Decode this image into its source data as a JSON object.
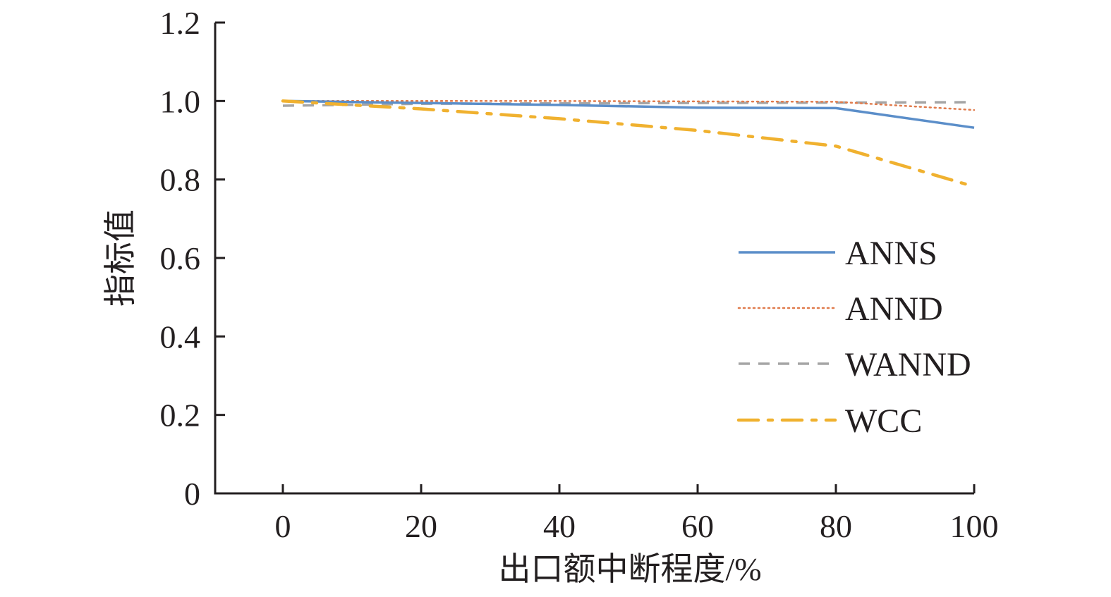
{
  "chart_data": {
    "type": "line",
    "title": "",
    "xlabel": "出口额中断程度/%",
    "ylabel": "指标值",
    "x": [
      0,
      20,
      40,
      60,
      80,
      100
    ],
    "xlim": [
      -10,
      100
    ],
    "ylim": [
      0,
      1.2
    ],
    "xticks": [
      "0",
      "20",
      "40",
      "60",
      "80",
      "100"
    ],
    "yticks": [
      "0",
      "0.2",
      "0.4",
      "0.6",
      "0.8",
      "1.0",
      "1.2"
    ],
    "grid": false,
    "legend_position": "right-middle",
    "series": [
      {
        "name": "ANNS",
        "color": "#5b8ec9",
        "style": "solid",
        "values": [
          1.0,
          0.995,
          0.99,
          0.983,
          0.982,
          0.932
        ]
      },
      {
        "name": "ANND",
        "color": "#e07b4c",
        "style": "dotted",
        "values": [
          1.0,
          1.0,
          1.0,
          0.999,
          0.998,
          0.977
        ]
      },
      {
        "name": "WANND",
        "color": "#a5a5a5",
        "style": "dashed",
        "values": [
          0.988,
          0.993,
          0.994,
          0.995,
          0.996,
          0.997
        ]
      },
      {
        "name": "WCC",
        "color": "#f0b12f",
        "style": "dash-dot",
        "values": [
          1.0,
          0.98,
          0.955,
          0.925,
          0.885,
          0.782
        ]
      }
    ]
  }
}
